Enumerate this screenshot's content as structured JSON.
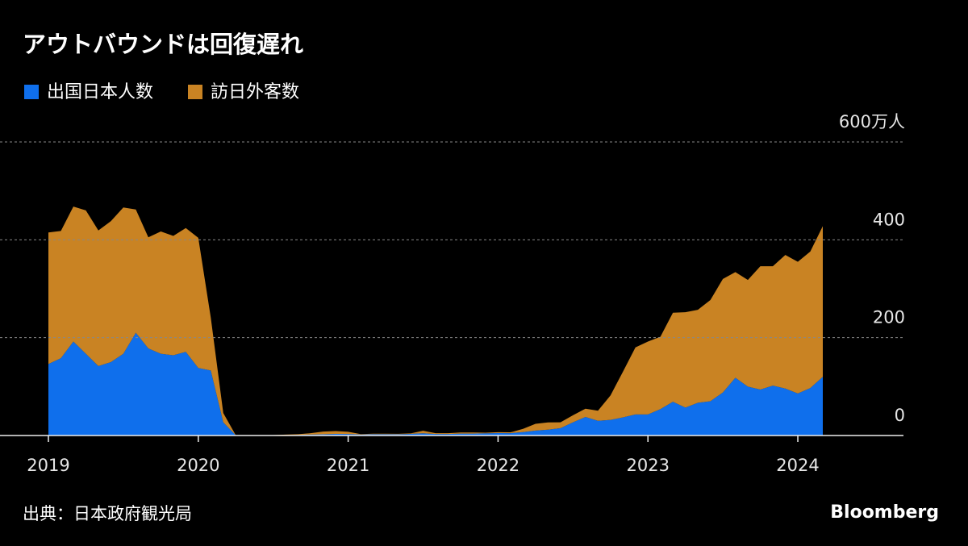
{
  "chart_data": {
    "type": "stacked-area",
    "title": "アウトバウンドは回復遅れ",
    "source": "出典：日本政府観光局",
    "brand": "Bloomberg",
    "categories": [
      "2019",
      null,
      null,
      null,
      null,
      null,
      null,
      null,
      null,
      null,
      null,
      null,
      "2020",
      null,
      null,
      null,
      null,
      null,
      null,
      null,
      null,
      null,
      null,
      null,
      "2021",
      null,
      null,
      null,
      null,
      null,
      null,
      null,
      null,
      null,
      null,
      null,
      "2022",
      null,
      null,
      null,
      null,
      null,
      null,
      null,
      null,
      null,
      null,
      null,
      "2023",
      null,
      null,
      null,
      null,
      null,
      null,
      null,
      null,
      null,
      null,
      null,
      "2024",
      null,
      null
    ],
    "series": [
      {
        "name": "出国日本人数",
        "color": "#0f6fec",
        "values": [
          146,
          158,
          192,
          167,
          142,
          150,
          167,
          210,
          178,
          167,
          164,
          171,
          138,
          133,
          27,
          0.4,
          0.3,
          0.3,
          0.5,
          0.9,
          1.2,
          2,
          2.5,
          3.2,
          3.1,
          2.1,
          2.6,
          2.6,
          2.5,
          3.4,
          4.5,
          3,
          3,
          4,
          4,
          4.5,
          5,
          4.8,
          7,
          10,
          12,
          15,
          27,
          38,
          30,
          32,
          37,
          43,
          43,
          54,
          69,
          57,
          67,
          70,
          88,
          118,
          100,
          94,
          102,
          96,
          86,
          97,
          120
        ]
      },
      {
        "name": "訪日外客数",
        "color": "#c98323",
        "values": [
          269,
          260,
          276,
          293,
          277,
          288,
          299,
          252,
          227,
          250,
          244,
          253,
          266,
          108,
          19,
          0.3,
          0.2,
          0.3,
          0.4,
          0.9,
          1.4,
          2.8,
          5.6,
          5.9,
          4.6,
          0.7,
          1.2,
          1.1,
          1,
          1,
          5.2,
          1.7,
          1.8,
          2.2,
          2.1,
          1.2,
          1.7,
          1.7,
          6.6,
          13.9,
          14.7,
          12,
          14.4,
          16.9,
          20.7,
          49.9,
          93.4,
          137,
          149,
          148,
          182,
          195,
          190,
          207,
          232,
          216,
          218,
          252,
          244,
          273,
          269,
          279,
          308
        ]
      }
    ],
    "ylim": [
      0,
      600
    ],
    "yticks": [
      0,
      200,
      400,
      {
        "value": 600,
        "label": "600万人"
      }
    ],
    "grid": true
  }
}
